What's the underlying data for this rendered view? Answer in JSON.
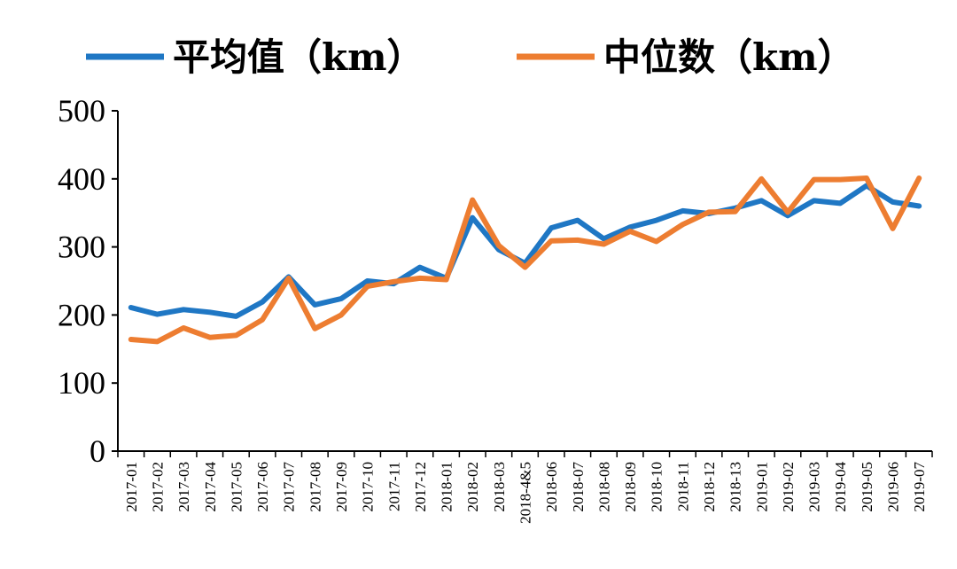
{
  "chart_data": {
    "type": "line",
    "title": "",
    "xlabel": "",
    "ylabel": "",
    "ylim": [
      0,
      500
    ],
    "yticks": [
      0,
      100,
      200,
      300,
      400,
      500
    ],
    "grid": false,
    "legend_position": "top",
    "categories": [
      "2017-01",
      "2017-02",
      "2017-03",
      "2017-04",
      "2017-05",
      "2017-06",
      "2017-07",
      "2017-08",
      "2017-09",
      "2017-10",
      "2017-11",
      "2017-12",
      "2018-01",
      "2018-02",
      "2018-03",
      "2018-4&5",
      "2018-06",
      "2018-07",
      "2018-08",
      "2018-09",
      "2018-10",
      "2018-11",
      "2018-12",
      "2018-13",
      "2019-01",
      "2019-02",
      "2019-03",
      "2019-04",
      "2019-05",
      "2019-06",
      "2019-07"
    ],
    "series": [
      {
        "name": "平均值（km）",
        "color": "#1f77c4",
        "values": [
          211,
          201,
          208,
          204,
          198,
          219,
          256,
          215,
          224,
          250,
          246,
          270,
          254,
          343,
          296,
          276,
          328,
          339,
          312,
          329,
          339,
          353,
          349,
          357,
          368,
          346,
          368,
          364,
          390,
          366,
          360
        ]
      },
      {
        "name": "中位数（km）",
        "color": "#ed7d31",
        "values": [
          164,
          161,
          181,
          167,
          170,
          193,
          254,
          180,
          200,
          242,
          249,
          254,
          252,
          369,
          302,
          270,
          309,
          310,
          304,
          323,
          308,
          333,
          351,
          352,
          400,
          351,
          399,
          399,
          401,
          327,
          401
        ]
      }
    ]
  }
}
